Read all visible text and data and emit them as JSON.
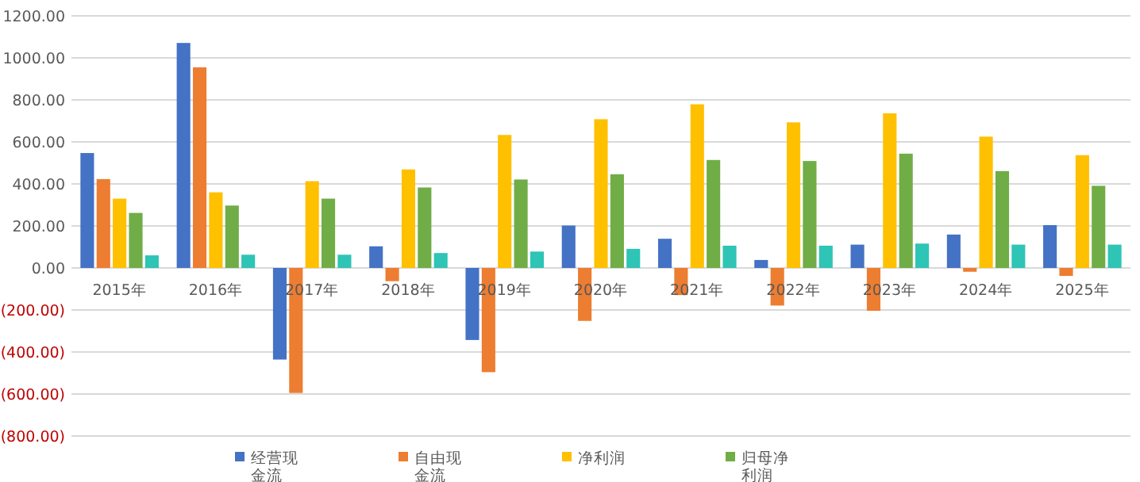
{
  "chart_data": {
    "type": "bar",
    "categories": [
      "2015年",
      "2016年",
      "2017年",
      "2018年",
      "2019年",
      "2020年",
      "2021年",
      "2022年",
      "2023年",
      "2024年",
      "2025年"
    ],
    "series": [
      {
        "name": "经营现金流",
        "color": "#4472c4",
        "values": [
          547,
          1071,
          -436,
          103,
          -343,
          202,
          139,
          38,
          111,
          159,
          204
        ]
      },
      {
        "name": "自由现金流",
        "color": "#ed7d31",
        "values": [
          423,
          955,
          -595,
          -63,
          -496,
          -252,
          -129,
          -179,
          -204,
          -18,
          -38
        ]
      },
      {
        "name": "净利润",
        "color": "#ffc000",
        "values": [
          330,
          360,
          413,
          469,
          633,
          708,
          779,
          693,
          736,
          625,
          537
        ]
      },
      {
        "name": "归母净利润",
        "color": "#70ad47",
        "values": [
          262,
          297,
          330,
          383,
          421,
          446,
          514,
          509,
          544,
          461,
          391
        ]
      },
      {
        "color": "#2ec4b6",
        "values": [
          60,
          63,
          63,
          71,
          78,
          91,
          106,
          106,
          116,
          111,
          111
        ]
      }
    ],
    "ylim": [
      -800,
      1200
    ],
    "yticks": [
      {
        "value": -800,
        "label": "(800.00)"
      },
      {
        "value": -600,
        "label": "(600.00)"
      },
      {
        "value": -400,
        "label": "(400.00)"
      },
      {
        "value": -200,
        "label": "(200.00)"
      },
      {
        "value": 0,
        "label": "0.00"
      },
      {
        "value": 200,
        "label": "200.00"
      },
      {
        "value": 400,
        "label": "400.00"
      },
      {
        "value": 600,
        "label": "600.00"
      },
      {
        "value": 800,
        "label": "800.00"
      },
      {
        "value": 1000,
        "label": "1000.00"
      },
      {
        "value": 1200,
        "label": "1200.00"
      }
    ],
    "grid": "y",
    "legend": "bottom"
  }
}
